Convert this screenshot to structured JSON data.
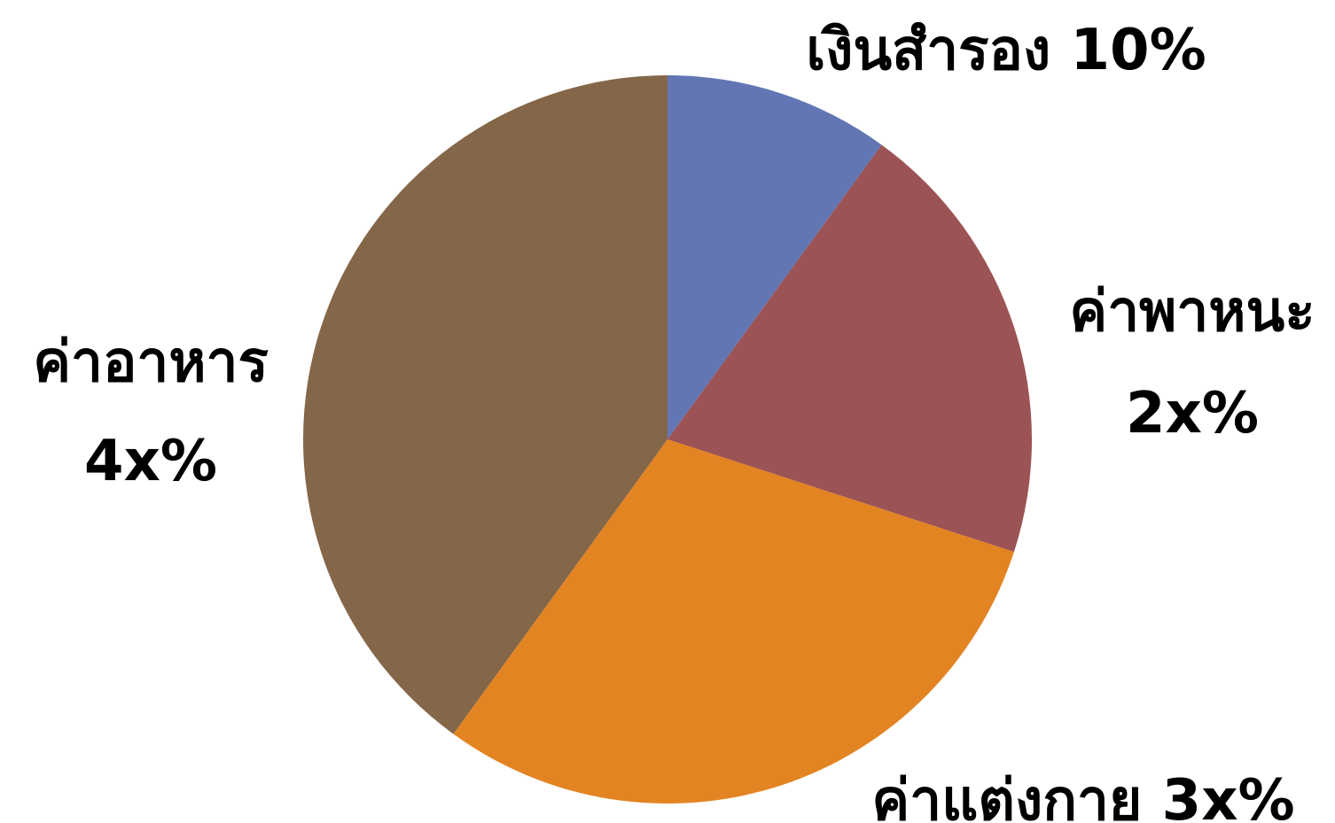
{
  "chart_data": {
    "type": "pie",
    "title": "",
    "start_angle_deg": 0,
    "direction": "clockwise",
    "slices": [
      {
        "name": "เงินสำรอง",
        "value": 10,
        "label_lines": [
          "เงินสำรอง  10%"
        ],
        "color": "#6176b3"
      },
      {
        "name": "ค่าพาหนะ",
        "value": 20,
        "label_lines": [
          "ค่าพาหนะ",
          "2x%"
        ],
        "color": "#9c5355"
      },
      {
        "name": "ค่าแต่งกาย",
        "value": 30,
        "label_lines": [
          "ค่าแต่งกาย  3x%"
        ],
        "color": "#e38422"
      },
      {
        "name": "ค่าอาหาร",
        "value": 40,
        "label_lines": [
          "ค่าอาหาร",
          "4x%"
        ],
        "color": "#846649"
      }
    ]
  }
}
